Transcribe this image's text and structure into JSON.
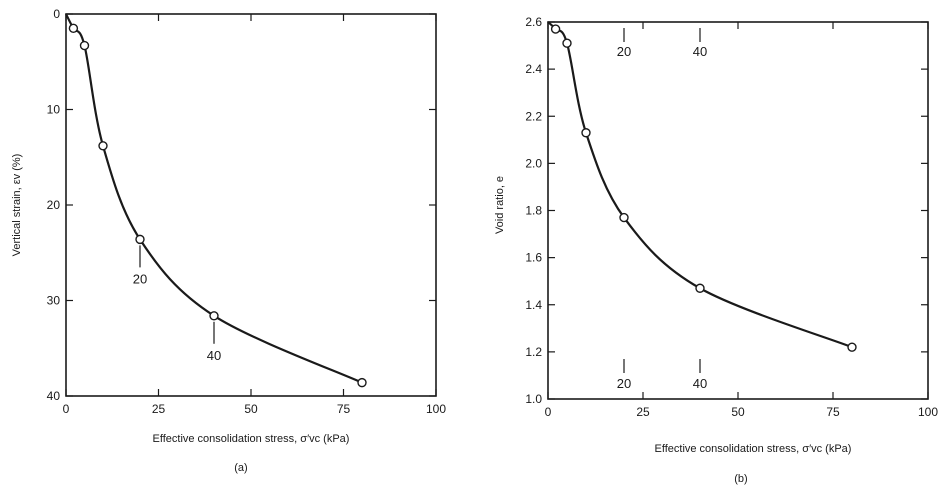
{
  "chart_data": [
    {
      "type": "line",
      "panel_label": "(a)",
      "xlabel": "Effective consolidation stress, σ′vc (kPa)",
      "ylabel": "Vertical strain, εv (%)",
      "xlim": [
        0,
        100
      ],
      "ylim": [
        0,
        40
      ],
      "y_inverted": true,
      "xticks": [
        "0",
        "25",
        "50",
        "75",
        "100"
      ],
      "yticks": [
        "0",
        "10",
        "20",
        "30",
        "40"
      ],
      "grid": false,
      "series": [
        {
          "x": [
            0,
            2,
            5,
            10,
            20,
            40,
            80
          ],
          "y": [
            0,
            1.5,
            3.3,
            13.8,
            23.6,
            31.6,
            38.6
          ]
        }
      ],
      "annotations": [
        {
          "text": "20",
          "x": 20,
          "y": 23.6
        },
        {
          "text": "40",
          "x": 40,
          "y": 31.6
        }
      ]
    },
    {
      "type": "line",
      "panel_label": "(b)",
      "xlabel": "Effective consolidation stress, σ′vc (kPa)",
      "ylabel": "Void ratio, e",
      "xlim": [
        0,
        100
      ],
      "ylim": [
        1.0,
        2.6
      ],
      "xticks": [
        "0",
        "25",
        "50",
        "75",
        "100"
      ],
      "yticks": [
        "1.0",
        "1.2",
        "1.4",
        "1.6",
        "1.8",
        "2.0",
        "2.2",
        "2.4",
        "2.6"
      ],
      "grid": false,
      "series": [
        {
          "x": [
            0,
            2,
            5,
            10,
            20,
            40,
            80
          ],
          "y": [
            2.6,
            2.57,
            2.51,
            2.13,
            1.77,
            1.47,
            1.22
          ]
        }
      ],
      "annotations": [
        {
          "text": "20",
          "x": 20,
          "position": "top"
        },
        {
          "text": "40",
          "x": 40,
          "position": "top"
        },
        {
          "text": "20",
          "x": 20,
          "position": "bottom"
        },
        {
          "text": "40",
          "x": 40,
          "position": "bottom"
        }
      ]
    }
  ]
}
